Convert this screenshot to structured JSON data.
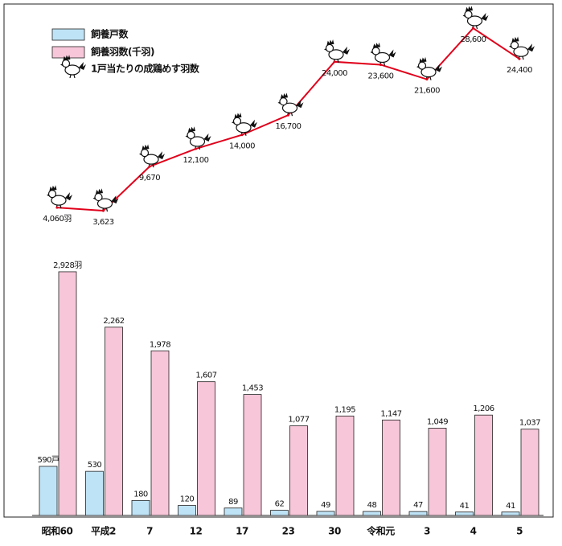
{
  "chart_data": {
    "type": "bar-line",
    "categories": [
      "昭和60",
      "平成2",
      "7",
      "12",
      "17",
      "23",
      "30",
      "令和元",
      "3",
      "4",
      "5"
    ],
    "series": [
      {
        "name": "飼養戸数",
        "color": "#bfe3f6",
        "values": [
          590,
          530,
          180,
          120,
          89,
          62,
          49,
          48,
          47,
          41,
          41
        ],
        "value_labels": [
          "590戸",
          "530",
          "180",
          "120",
          "89",
          "62",
          "49",
          "48",
          "47",
          "41",
          "41"
        ]
      },
      {
        "name": "飼養羽数(千羽)",
        "color": "#f7c6d9",
        "values": [
          2928,
          2262,
          1978,
          1607,
          1453,
          1077,
          1195,
          1147,
          1049,
          1206,
          1037
        ],
        "value_labels": [
          "2,928羽",
          "2,262",
          "1,978",
          "1,607",
          "1,453",
          "1,077",
          "1,195",
          "1,147",
          "1,049",
          "1,206",
          "1,037"
        ]
      },
      {
        "name": "1戸当たりの成鶏めす羽数",
        "color": "#e0001b",
        "type": "line",
        "values": [
          4060,
          3623,
          9670,
          12100,
          14000,
          16700,
          24000,
          23600,
          21600,
          28600,
          24400
        ],
        "value_labels": [
          "4,060羽",
          "3,623",
          "9,670",
          "12,100",
          "14,000",
          "16,700",
          "24,000",
          "23,600",
          "21,600",
          "28,600",
          "24,400"
        ]
      }
    ]
  }
}
